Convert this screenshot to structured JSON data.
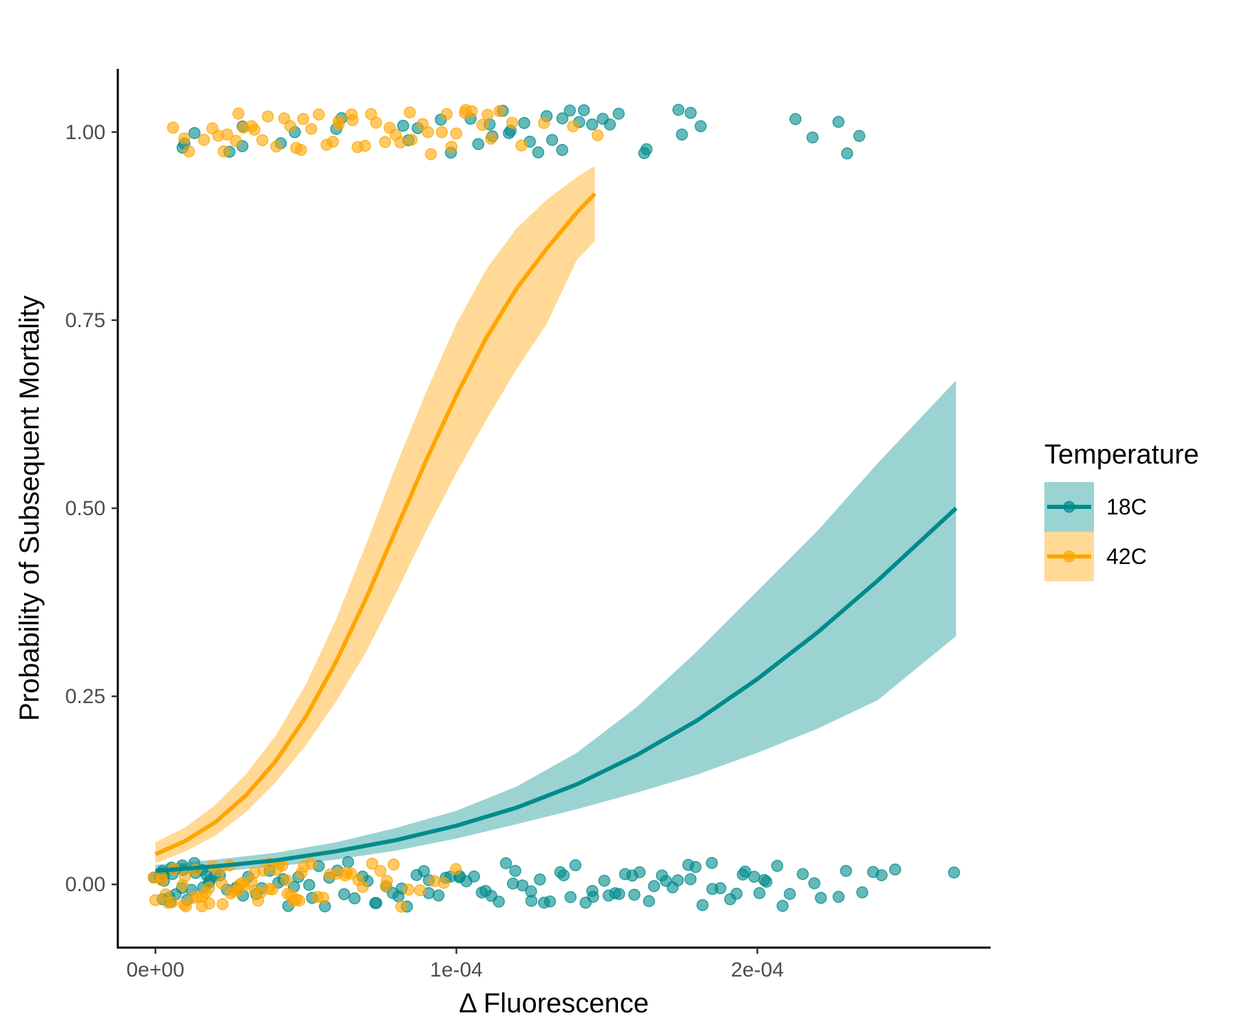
{
  "chart_data": {
    "type": "scatter",
    "xlabel": "Δ Fluorescence",
    "ylabel": "Probability of Subsequent Mortality",
    "xlim": [
      -1.25e-05,
      0.0002775
    ],
    "ylim": [
      -0.084,
      1.084
    ],
    "x_ticks": [
      {
        "value": 0,
        "label": "0e+00"
      },
      {
        "value": 0.0001,
        "label": "1e-04"
      },
      {
        "value": 0.0002,
        "label": "2e-04"
      }
    ],
    "y_ticks": [
      {
        "value": 0,
        "label": "0.00"
      },
      {
        "value": 0.25,
        "label": "0.25"
      },
      {
        "value": 0.5,
        "label": "0.50"
      },
      {
        "value": 0.75,
        "label": "0.75"
      },
      {
        "value": 1.0,
        "label": "1.00"
      }
    ],
    "grid": false,
    "legend": {
      "title": "Temperature",
      "placement": "right"
    },
    "series": [
      {
        "name": "18C",
        "color": "#008b8b",
        "band_color": "#9bd3d3",
        "fit": {
          "x": [
            0,
            2e-05,
            4e-05,
            6e-05,
            8e-05,
            0.0001,
            0.00012,
            0.00014,
            0.00016,
            0.00018,
            0.0002,
            0.00022,
            0.00024,
            0.000266
          ],
          "y": [
            0.018,
            0.024,
            0.032,
            0.044,
            0.059,
            0.078,
            0.102,
            0.133,
            0.172,
            0.218,
            0.273,
            0.335,
            0.404,
            0.5
          ],
          "lower": [
            0.012,
            0.017,
            0.024,
            0.033,
            0.045,
            0.061,
            0.08,
            0.1,
            0.122,
            0.146,
            0.175,
            0.207,
            0.245,
            0.33
          ],
          "upper": [
            0.026,
            0.033,
            0.042,
            0.056,
            0.075,
            0.098,
            0.13,
            0.175,
            0.236,
            0.31,
            0.39,
            0.47,
            0.56,
            0.67
          ]
        },
        "points_died": [
          1e-05,
          1e-05,
          1.3e-05,
          2.5e-05,
          2.8e-05,
          3e-05,
          4.1e-05,
          4.6e-05,
          6.1e-05,
          6.2e-05,
          8.2e-05,
          8.5e-05,
          8.7e-05,
          9.5e-05,
          9.7e-05,
          0.000104,
          0.000108,
          0.00011,
          0.000112,
          0.000115,
          0.000117,
          0.000118,
          0.000122,
          0.000125,
          0.000128,
          0.00013,
          0.000133,
          0.000134,
          0.000135,
          0.000137,
          0.00014,
          0.000142,
          0.000146,
          0.000149,
          0.000151,
          0.000154,
          0.000162,
          0.000164,
          0.000174,
          0.000176,
          0.000178,
          0.00018,
          0.000212,
          0.000219,
          0.000228,
          0.000229,
          0.000233
        ],
        "points_survived": [
          0,
          5e-07,
          1e-06,
          1.5e-06,
          2e-06,
          2.5e-06,
          3e-06,
          3.5e-06,
          4e-06,
          4.5e-06,
          5e-06,
          6e-06,
          7e-06,
          8e-06,
          9e-06,
          1e-05,
          1.1e-05,
          1.2e-05,
          1.3e-05,
          1.4e-05,
          1.5e-05,
          1.6e-05,
          1.7e-05,
          1.8e-05,
          1.9e-05,
          2e-05,
          2.2e-05,
          2.4e-05,
          2.6e-05,
          2.8e-05,
          3e-05,
          3.2e-05,
          3.4e-05,
          3.6e-05,
          3.8e-05,
          4e-05,
          4.2e-05,
          4.4e-05,
          4.6e-05,
          4.8e-05,
          5e-05,
          5.2e-05,
          5.4e-05,
          5.6e-05,
          5.8e-05,
          6e-05,
          6.2e-05,
          6.4e-05,
          6.6e-05,
          6.8e-05,
          7e-05,
          7.2e-05,
          7.4e-05,
          7.6e-05,
          7.8e-05,
          8e-05,
          8.2e-05,
          8.4e-05,
          8.6e-05,
          8.8e-05,
          9e-05,
          9.2e-05,
          9.4e-05,
          9.6e-05,
          9.8e-05,
          0.0001,
          0.000102,
          0.000104,
          0.000106,
          0.000108,
          0.00011,
          0.000112,
          0.000114,
          0.000116,
          0.000118,
          0.00012,
          0.000122,
          0.000124,
          0.000126,
          0.000128,
          0.00013,
          0.000132,
          0.000134,
          0.000136,
          0.000138,
          0.00014,
          0.000142,
          0.000144,
          0.000146,
          0.000148,
          0.00015,
          0.000152,
          0.000154,
          0.000156,
          0.000158,
          0.00016,
          0.000162,
          0.000164,
          0.000166,
          0.000168,
          0.00017,
          0.000172,
          0.000174,
          0.000176,
          0.000178,
          0.00018,
          0.000182,
          0.000184,
          0.000186,
          0.000188,
          0.00019,
          0.000192,
          0.000194,
          0.000196,
          0.000198,
          0.0002,
          0.000202,
          0.000204,
          0.000206,
          0.000208,
          0.00021,
          0.000214,
          0.000218,
          0.000222,
          0.000226,
          0.00023,
          0.000234,
          0.000238,
          0.000242,
          0.000245,
          0.000266
        ]
      },
      {
        "name": "42C",
        "color": "#ffa500",
        "band_color": "#ffd995",
        "fit": {
          "x": [
            0,
            1e-05,
            2e-05,
            3e-05,
            4e-05,
            5e-05,
            6e-05,
            7e-05,
            8e-05,
            9e-05,
            0.0001,
            0.00011,
            0.00012,
            0.00013,
            0.00014,
            0.000146
          ],
          "y": [
            0.04,
            0.058,
            0.083,
            0.118,
            0.164,
            0.223,
            0.296,
            0.38,
            0.472,
            0.564,
            0.65,
            0.727,
            0.792,
            0.845,
            0.893,
            0.918
          ],
          "lower": [
            0.028,
            0.044,
            0.065,
            0.096,
            0.136,
            0.185,
            0.243,
            0.309,
            0.388,
            0.47,
            0.547,
            0.618,
            0.685,
            0.745,
            0.83,
            0.855
          ],
          "upper": [
            0.056,
            0.076,
            0.106,
            0.146,
            0.198,
            0.266,
            0.352,
            0.452,
            0.557,
            0.655,
            0.745,
            0.818,
            0.872,
            0.91,
            0.94,
            0.955
          ]
        },
        "points_died": [
          7e-06,
          1e-05,
          1.2e-05,
          1.5e-05,
          1.8e-05,
          2e-05,
          2.2e-05,
          2.4e-05,
          2.6e-05,
          2.8e-05,
          3e-05,
          3.2e-05,
          3.4e-05,
          3.6e-05,
          3.8e-05,
          4e-05,
          4.2e-05,
          4.4e-05,
          4.6e-05,
          4.8e-05,
          5e-05,
          5.2e-05,
          5.4e-05,
          5.6e-05,
          5.8e-05,
          6e-05,
          6.2e-05,
          6.4e-05,
          6.6e-05,
          6.8e-05,
          7e-05,
          7.2e-05,
          7.4e-05,
          7.6e-05,
          7.8e-05,
          8e-05,
          8.2e-05,
          8.4e-05,
          8.6e-05,
          8.8e-05,
          9e-05,
          9.2e-05,
          9.4e-05,
          9.6e-05,
          9.8e-05,
          0.0001,
          0.000102,
          0.000104,
          0.000106,
          0.000108,
          0.00011,
          0.000112,
          0.000114,
          0.000118,
          0.000122,
          0.000128,
          0.000139,
          0.000146
        ],
        "points_survived": [
          0,
          1e-06,
          2e-06,
          3e-06,
          4e-06,
          5e-06,
          6e-06,
          7e-06,
          8e-06,
          9e-06,
          1e-05,
          1.1e-05,
          1.2e-05,
          1.3e-05,
          1.4e-05,
          1.5e-05,
          1.6e-05,
          1.7e-05,
          1.8e-05,
          1.9e-05,
          2e-05,
          2.1e-05,
          2.2e-05,
          2.3e-05,
          2.4e-05,
          2.5e-05,
          2.6e-05,
          2.7e-05,
          2.8e-05,
          2.9e-05,
          3e-05,
          3.1e-05,
          3.2e-05,
          3.3e-05,
          3.4e-05,
          3.5e-05,
          3.6e-05,
          3.7e-05,
          3.8e-05,
          3.9e-05,
          4e-05,
          4.1e-05,
          4.2e-05,
          4.3e-05,
          4.4e-05,
          4.5e-05,
          4.6e-05,
          4.7e-05,
          4.8e-05,
          4.9e-05,
          5e-05,
          5.2e-05,
          5.4e-05,
          5.6e-05,
          5.8e-05,
          6e-05,
          6.2e-05,
          6.4e-05,
          6.6e-05,
          6.8e-05,
          7e-05,
          7.2e-05,
          7.4e-05,
          7.6e-05,
          7.8e-05,
          8e-05,
          8.2e-05,
          8.5e-05,
          8.8e-05,
          9.2e-05,
          9.7e-05,
          0.000101
        ]
      }
    ]
  }
}
